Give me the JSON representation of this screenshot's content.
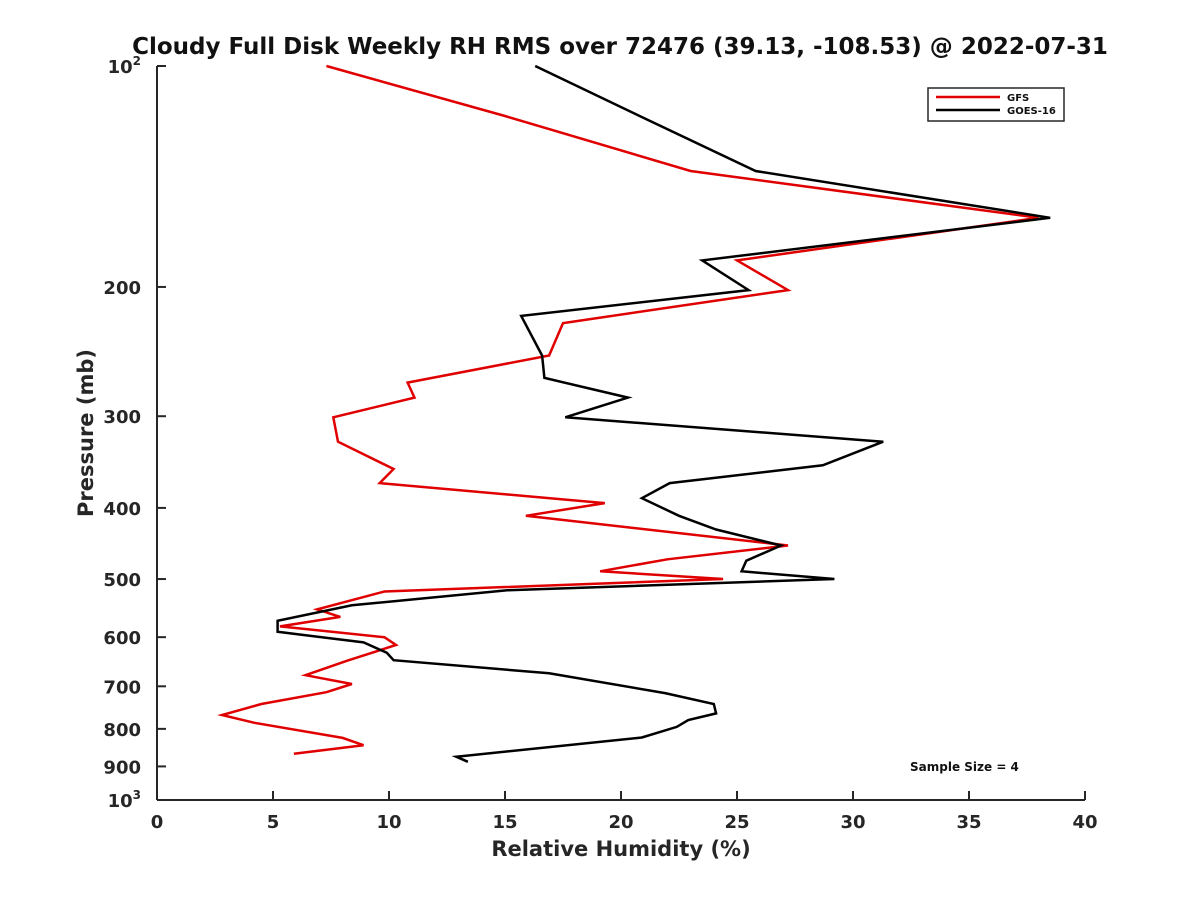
{
  "chart_data": {
    "type": "line",
    "title": "Cloudy Full Disk Weekly RH RMS over 72476 (39.13, -108.53) @ 2022-07-31",
    "xlabel": "Relative Humidity (%)",
    "ylabel": "Pressure (mb)",
    "xlim": [
      0,
      40
    ],
    "ylim": [
      100,
      1000
    ],
    "yscale": "log",
    "y_reversed": true,
    "x_ticks": [
      "0",
      "5",
      "10",
      "15",
      "20",
      "25",
      "30",
      "35",
      "40"
    ],
    "y_ticks": [
      {
        "base": "10",
        "exp": "2",
        "value": 100
      },
      {
        "label": "200",
        "value": 200
      },
      {
        "label": "300",
        "value": 300
      },
      {
        "label": "400",
        "value": 400
      },
      {
        "label": "500",
        "value": 500
      },
      {
        "label": "600",
        "value": 600
      },
      {
        "label": "700",
        "value": 700
      },
      {
        "label": "800",
        "value": 800
      },
      {
        "label": "900",
        "value": 900
      },
      {
        "base": "10",
        "exp": "3",
        "value": 1000
      }
    ],
    "grid": false,
    "legend_position": "top-right",
    "annotation": "Sample Size = 4",
    "series": [
      {
        "name": "GFS",
        "color": "#e00000",
        "points": [
          [
            7.3,
            100
          ],
          [
            15.0,
            117
          ],
          [
            23.0,
            139
          ],
          [
            38.0,
            161
          ],
          [
            25.0,
            184
          ],
          [
            27.2,
            202
          ],
          [
            17.5,
            224
          ],
          [
            16.9,
            248
          ],
          [
            10.8,
            270
          ],
          [
            11.1,
            283
          ],
          [
            7.6,
            301
          ],
          [
            7.8,
            325
          ],
          [
            10.2,
            354
          ],
          [
            9.6,
            370
          ],
          [
            19.3,
            394
          ],
          [
            15.9,
            410
          ],
          [
            27.2,
            450
          ],
          [
            22.0,
            470
          ],
          [
            19.1,
            488
          ],
          [
            24.4,
            500
          ],
          [
            9.8,
            520
          ],
          [
            6.9,
            550
          ],
          [
            7.9,
            563
          ],
          [
            5.3,
            580
          ],
          [
            9.8,
            600
          ],
          [
            10.3,
            615
          ],
          [
            8.2,
            646
          ],
          [
            6.4,
            676
          ],
          [
            8.4,
            695
          ],
          [
            7.3,
            713
          ],
          [
            4.5,
            740
          ],
          [
            2.8,
            766
          ],
          [
            4.2,
            785
          ],
          [
            8.0,
            823
          ],
          [
            8.9,
            842
          ],
          [
            5.9,
            865
          ]
        ]
      },
      {
        "name": "GOES-16",
        "color": "#000000",
        "points": [
          [
            16.3,
            100
          ],
          [
            20.8,
            117
          ],
          [
            25.8,
            139
          ],
          [
            38.5,
            161
          ],
          [
            23.5,
            184
          ],
          [
            25.5,
            202
          ],
          [
            15.7,
            219
          ],
          [
            16.6,
            248
          ],
          [
            16.7,
            266
          ],
          [
            20.3,
            283
          ],
          [
            17.6,
            301
          ],
          [
            31.3,
            325
          ],
          [
            28.7,
            350
          ],
          [
            22.1,
            370
          ],
          [
            20.9,
            388
          ],
          [
            22.5,
            410
          ],
          [
            24.1,
            428
          ],
          [
            26.9,
            450
          ],
          [
            25.4,
            472
          ],
          [
            25.2,
            488
          ],
          [
            29.2,
            500
          ],
          [
            15.1,
            518
          ],
          [
            8.4,
            543
          ],
          [
            5.2,
            570
          ],
          [
            5.2,
            590
          ],
          [
            8.9,
            610
          ],
          [
            9.9,
            630
          ],
          [
            10.2,
            645
          ],
          [
            16.9,
            672
          ],
          [
            21.9,
            715
          ],
          [
            24.0,
            740
          ],
          [
            24.1,
            762
          ],
          [
            22.9,
            778
          ],
          [
            22.4,
            795
          ],
          [
            20.9,
            822
          ],
          [
            12.9,
            873
          ],
          [
            13.4,
            887
          ]
        ]
      }
    ]
  }
}
